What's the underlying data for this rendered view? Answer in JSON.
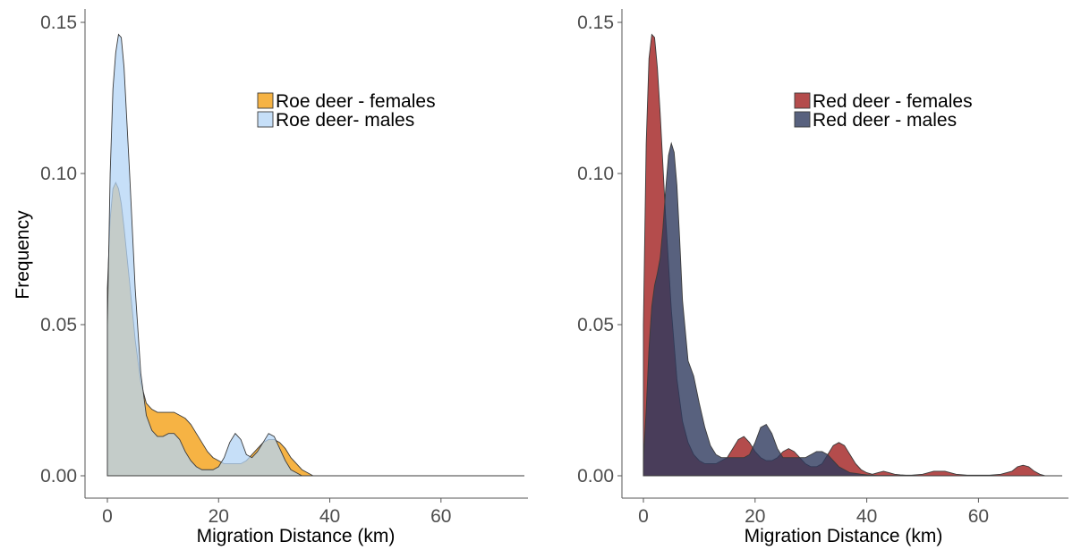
{
  "chart_data": [
    {
      "type": "area",
      "panel": "left",
      "title": "",
      "xlabel": "Migration Distance (km)",
      "ylabel": "Frequency",
      "xlim": [
        0,
        75
      ],
      "ylim": [
        0,
        0.15
      ],
      "xticks": [
        0,
        20,
        40,
        60
      ],
      "xtick_labels": [
        "0",
        "20",
        "40",
        "60"
      ],
      "yticks": [
        0.0,
        0.05,
        0.1,
        0.15
      ],
      "ytick_labels": [
        "0.00",
        "0.05",
        "0.10",
        "0.15"
      ],
      "grid": false,
      "legend_position": "top-right",
      "series": [
        {
          "name": "Roe deer - females",
          "color": "#f5a623",
          "opacity": 0.85,
          "x": [
            0,
            0.5,
            1,
            1.5,
            2,
            2.5,
            3,
            4,
            5,
            6,
            7,
            8,
            9,
            10,
            11,
            12,
            13,
            14,
            15,
            16,
            17,
            18,
            19,
            20,
            21,
            22,
            23,
            24,
            25,
            26,
            27,
            28,
            29,
            30,
            31,
            32,
            33,
            34,
            35,
            36,
            37
          ],
          "values": [
            0.062,
            0.085,
            0.095,
            0.097,
            0.095,
            0.09,
            0.082,
            0.064,
            0.045,
            0.031,
            0.024,
            0.022,
            0.021,
            0.021,
            0.021,
            0.021,
            0.02,
            0.019,
            0.017,
            0.014,
            0.011,
            0.008,
            0.006,
            0.005,
            0.004,
            0.004,
            0.004,
            0.004,
            0.005,
            0.007,
            0.009,
            0.011,
            0.012,
            0.012,
            0.011,
            0.009,
            0.006,
            0.004,
            0.002,
            0.001,
            0
          ]
        },
        {
          "name": "Roe deer- males",
          "color": "#b3d4f5",
          "opacity": 0.75,
          "x": [
            0,
            0.5,
            1,
            1.5,
            2,
            2.5,
            3,
            4,
            5,
            6,
            7,
            8,
            9,
            10,
            11,
            12,
            13,
            14,
            15,
            16,
            17,
            18,
            19,
            20,
            21,
            22,
            23,
            24,
            25,
            26,
            27,
            28,
            29,
            30,
            31,
            32,
            33,
            34,
            35
          ],
          "values": [
            0.05,
            0.1,
            0.128,
            0.14,
            0.146,
            0.145,
            0.135,
            0.1,
            0.062,
            0.034,
            0.02,
            0.015,
            0.013,
            0.013,
            0.014,
            0.014,
            0.012,
            0.008,
            0.005,
            0.003,
            0.002,
            0.002,
            0.002,
            0.003,
            0.006,
            0.011,
            0.014,
            0.012,
            0.007,
            0.006,
            0.008,
            0.011,
            0.014,
            0.013,
            0.009,
            0.005,
            0.002,
            0.001,
            0
          ]
        }
      ]
    },
    {
      "type": "area",
      "panel": "right",
      "title": "",
      "xlabel": "Migration Distance (km)",
      "ylabel": "",
      "xlim": [
        0,
        75
      ],
      "ylim": [
        0,
        0.15
      ],
      "xticks": [
        0,
        20,
        40,
        60
      ],
      "xtick_labels": [
        "0",
        "20",
        "40",
        "60"
      ],
      "yticks": [
        0.0,
        0.05,
        0.1,
        0.15
      ],
      "ytick_labels": [
        "0.00",
        "0.05",
        "0.10",
        "0.15"
      ],
      "grid": false,
      "legend_position": "top-right",
      "series": [
        {
          "name": "Red deer - females",
          "color": "#a72d2d",
          "opacity": 0.85,
          "x": [
            0,
            0.5,
            1,
            1.5,
            2,
            2.5,
            3,
            4,
            5,
            6,
            7,
            8,
            9,
            10,
            11,
            12,
            13,
            14,
            15,
            16,
            17,
            18,
            19,
            20,
            21,
            22,
            23,
            24,
            25,
            26,
            27,
            28,
            29,
            30,
            31,
            32,
            33,
            34,
            35,
            36,
            37,
            38,
            39,
            40,
            41,
            42,
            43,
            44,
            45,
            46,
            47,
            48,
            50,
            52,
            54,
            56,
            58,
            60,
            62,
            64,
            66,
            67,
            68,
            69,
            70,
            71,
            72
          ],
          "values": [
            0.05,
            0.11,
            0.138,
            0.146,
            0.145,
            0.135,
            0.12,
            0.085,
            0.055,
            0.032,
            0.018,
            0.011,
            0.007,
            0.005,
            0.004,
            0.004,
            0.004,
            0.005,
            0.006,
            0.009,
            0.012,
            0.013,
            0.011,
            0.008,
            0.006,
            0.005,
            0.005,
            0.006,
            0.008,
            0.009,
            0.008,
            0.006,
            0.004,
            0.003,
            0.003,
            0.004,
            0.007,
            0.01,
            0.011,
            0.01,
            0.007,
            0.004,
            0.002,
            0.001,
            0.0005,
            0.001,
            0.0015,
            0.001,
            0.0005,
            0.0003,
            0.0002,
            0.0002,
            0.0005,
            0.0015,
            0.0015,
            0.0005,
            0.0002,
            0.0002,
            0.0002,
            0.0005,
            0.0015,
            0.003,
            0.0035,
            0.003,
            0.0015,
            0.0005,
            0
          ]
        },
        {
          "name": "Red deer - males",
          "color": "#2e3a5e",
          "opacity": 0.8,
          "x": [
            0,
            0.5,
            1,
            1.5,
            2,
            2.5,
            3,
            3.5,
            4,
            4.5,
            5,
            5.5,
            6,
            6.5,
            7,
            8,
            9,
            10,
            11,
            12,
            13,
            14,
            15,
            16,
            17,
            18,
            19,
            20,
            21,
            22,
            23,
            24,
            25,
            26,
            27,
            28,
            29,
            30,
            31,
            32,
            33,
            34,
            35,
            36,
            37,
            38,
            39,
            40,
            41,
            42,
            43,
            44,
            45,
            46
          ],
          "values": [
            0.005,
            0.022,
            0.042,
            0.056,
            0.063,
            0.067,
            0.072,
            0.082,
            0.095,
            0.106,
            0.11,
            0.107,
            0.096,
            0.078,
            0.058,
            0.038,
            0.033,
            0.024,
            0.016,
            0.01,
            0.007,
            0.006,
            0.006,
            0.006,
            0.006,
            0.006,
            0.007,
            0.011,
            0.016,
            0.017,
            0.014,
            0.009,
            0.006,
            0.006,
            0.006,
            0.006,
            0.006,
            0.007,
            0.008,
            0.008,
            0.007,
            0.005,
            0.003,
            0.002,
            0.001,
            0.0008,
            0.0005,
            0.0003,
            0.0002,
            0.0001,
            0.0001,
            0.0001,
            0.0001,
            0
          ]
        }
      ]
    }
  ]
}
